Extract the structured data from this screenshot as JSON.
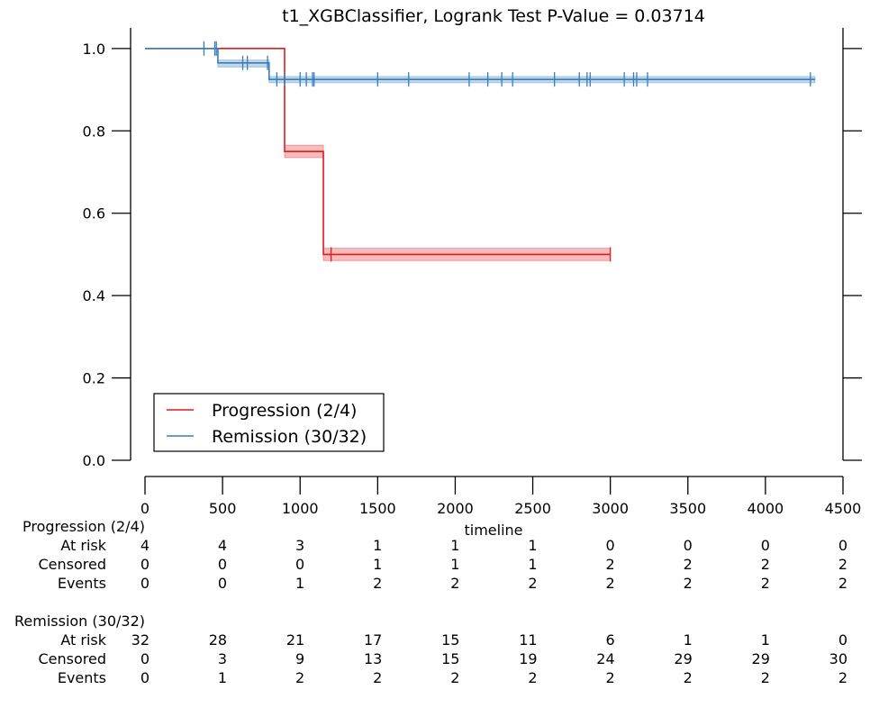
{
  "chart_data": {
    "type": "line",
    "title": "t1_XGBClassifier, Logrank Test P-Value = 0.03714",
    "xlabel": "timeline",
    "ylabel": "",
    "xlim": [
      0,
      4500
    ],
    "ylim": [
      0,
      1.05
    ],
    "x_ticks": [
      0,
      500,
      1000,
      1500,
      2000,
      2500,
      3000,
      3500,
      4000,
      4500
    ],
    "y_ticks": [
      0.0,
      0.2,
      0.4,
      0.6,
      0.8,
      1.0
    ],
    "x_tick_labels": [
      "0",
      "500",
      "1000",
      "1500",
      "2000",
      "2500",
      "3000",
      "3500",
      "4000",
      "4500"
    ],
    "y_tick_labels": [
      "0.0",
      "0.2",
      "0.4",
      "0.6",
      "0.8",
      "1.0"
    ],
    "legend_position": "bottom-left",
    "series": [
      {
        "name": "Progression (2/4)",
        "color": "#e41a1c",
        "band_color": "#f2a0a2",
        "steps": [
          {
            "x": 0,
            "y": 1.0
          },
          {
            "x": 900,
            "y": 0.75
          },
          {
            "x": 1150,
            "y": 0.5
          }
        ],
        "end_x": 3000,
        "ci_bands": [
          {
            "x0": 900,
            "x1": 1150,
            "y_low": 0.735,
            "y_high": 0.765
          },
          {
            "x0": 1150,
            "x1": 3000,
            "y_low": 0.485,
            "y_high": 0.515
          }
        ],
        "censored_x": [
          1200,
          3000
        ]
      },
      {
        "name": "Remission (30/32)",
        "color": "#377eb8",
        "band_color": "#a6c6e3",
        "steps": [
          {
            "x": 0,
            "y": 1.0
          },
          {
            "x": 470,
            "y": 0.965
          },
          {
            "x": 800,
            "y": 0.925
          }
        ],
        "end_x": 4320,
        "ci_bands": [
          {
            "x0": 470,
            "x1": 800,
            "y_low": 0.955,
            "y_high": 0.972
          },
          {
            "x0": 800,
            "x1": 4320,
            "y_low": 0.917,
            "y_high": 0.932
          }
        ],
        "censored_x": [
          380,
          450,
          460,
          630,
          660,
          790,
          850,
          900,
          1000,
          1040,
          1080,
          1090,
          1500,
          1700,
          2090,
          2210,
          2300,
          2370,
          2640,
          2800,
          2850,
          2870,
          3090,
          3150,
          3170,
          3240,
          4290
        ]
      }
    ],
    "at_risk_table": {
      "time_points": [
        0,
        500,
        1000,
        1500,
        2000,
        2500,
        3000,
        3500,
        4000,
        4500
      ],
      "groups": [
        {
          "name": "Progression (2/4)",
          "rows": [
            {
              "label": "At risk",
              "values": [
                "4",
                "4",
                "3",
                "1",
                "1",
                "1",
                "0",
                "0",
                "0",
                "0"
              ]
            },
            {
              "label": "Censored",
              "values": [
                "0",
                "0",
                "0",
                "1",
                "1",
                "1",
                "2",
                "2",
                "2",
                "2"
              ]
            },
            {
              "label": "Events",
              "values": [
                "0",
                "0",
                "1",
                "2",
                "2",
                "2",
                "2",
                "2",
                "2",
                "2"
              ]
            }
          ]
        },
        {
          "name": "Remission (30/32)",
          "rows": [
            {
              "label": "At risk",
              "values": [
                "32",
                "28",
                "21",
                "17",
                "15",
                "11",
                "6",
                "1",
                "1",
                "0"
              ]
            },
            {
              "label": "Censored",
              "values": [
                "0",
                "3",
                "9",
                "13",
                "15",
                "19",
                "24",
                "29",
                "29",
                "30"
              ]
            },
            {
              "label": "Events",
              "values": [
                "0",
                "1",
                "2",
                "2",
                "2",
                "2",
                "2",
                "2",
                "2",
                "2"
              ]
            }
          ]
        }
      ]
    }
  }
}
